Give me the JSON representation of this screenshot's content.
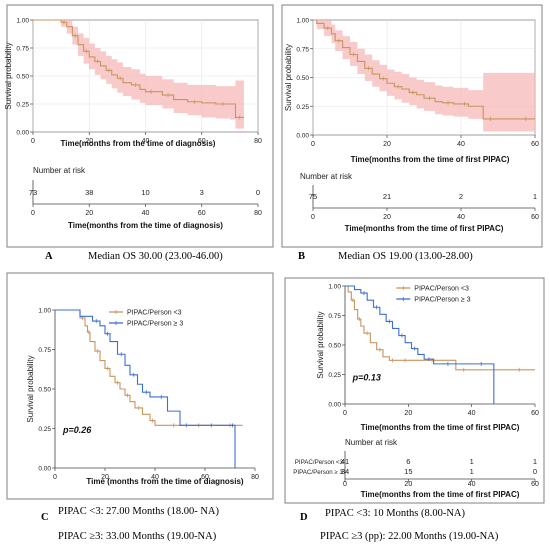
{
  "captions": {
    "a_letter": "A",
    "a_text": "Median OS 30.00 (23.00-46.00)",
    "b_letter": "B",
    "b_text": "Median OS 19.00 (13.00-28.00)",
    "c_letter": "C",
    "c_text1": "PIPAC <3: 27.00 Months (18.00- NA)",
    "c_text2": "PIPAC ≥3: 33.00 Months (19.00-NA)",
    "d_letter": "D",
    "d_text1": "PIPAC <3: 10 Months (8.00-NA)",
    "d_text2": "PIPAC ≥3 (pp): 22.00 Months (19.00-NA)"
  },
  "colors": {
    "group_lt3": "#c8955e",
    "group_ge3": "#3b6fd6",
    "overall_line": "#c8955e",
    "overall_ci": "#f6b8b8",
    "frame": "#808080"
  },
  "chart_data": [
    {
      "id": "A",
      "type": "line",
      "ylabel": "Survival probability",
      "xlabel": "Time(months from the time of diagnosis)",
      "xlim": [
        0,
        80
      ],
      "ylim": [
        0,
        1
      ],
      "xticks": [
        "0",
        "20",
        "40",
        "60",
        "80"
      ],
      "yticks": [
        "0.00",
        "0.25",
        "0.50",
        "0.75",
        "1.00"
      ],
      "grid": true,
      "series": [
        {
          "color": "#c8955e",
          "x": [
            0,
            5,
            10,
            12,
            14,
            16,
            18,
            20,
            22,
            24,
            26,
            28,
            30,
            32,
            35,
            38,
            40,
            44,
            46,
            50,
            55,
            60,
            65,
            70,
            72,
            75
          ],
          "y": [
            1.0,
            1.0,
            0.98,
            0.94,
            0.86,
            0.78,
            0.72,
            0.67,
            0.63,
            0.59,
            0.55,
            0.51,
            0.48,
            0.44,
            0.42,
            0.38,
            0.36,
            0.36,
            0.33,
            0.29,
            0.27,
            0.26,
            0.25,
            0.25,
            0.13,
            0.13
          ],
          "lower": [
            1.0,
            1.0,
            0.94,
            0.88,
            0.78,
            0.68,
            0.61,
            0.56,
            0.51,
            0.47,
            0.43,
            0.39,
            0.35,
            0.32,
            0.29,
            0.26,
            0.24,
            0.24,
            0.21,
            0.17,
            0.15,
            0.13,
            0.12,
            0.11,
            0.03,
            0.03
          ],
          "upper": [
            1.0,
            1.0,
            1.0,
            1.0,
            0.94,
            0.88,
            0.84,
            0.79,
            0.75,
            0.72,
            0.68,
            0.65,
            0.62,
            0.58,
            0.56,
            0.52,
            0.5,
            0.5,
            0.47,
            0.44,
            0.42,
            0.42,
            0.41,
            0.41,
            0.46,
            0.46
          ]
        }
      ],
      "risk_table": {
        "title": "Number at risk",
        "x": [
          0,
          20,
          40,
          60,
          80
        ],
        "rows": [
          {
            "label": "",
            "values": [
              "73",
              "38",
              "10",
              "3",
              "0"
            ]
          }
        ],
        "xlabel": "Time(months from the time of diagnosis)",
        "xticks": [
          "0",
          "20",
          "40",
          "60",
          "80"
        ]
      }
    },
    {
      "id": "B",
      "type": "line",
      "ylabel": "Survival probability",
      "xlabel": "Time(months from the time of first PIPAC)",
      "xlim": [
        0,
        60
      ],
      "ylim": [
        0,
        1
      ],
      "xticks": [
        "0",
        "20",
        "40",
        "60"
      ],
      "yticks": [
        "0.00",
        "0.25",
        "0.50",
        "0.75",
        "1.00"
      ],
      "grid": true,
      "series": [
        {
          "color": "#c8955e",
          "x": [
            0,
            1,
            3,
            5,
            6,
            8,
            10,
            12,
            14,
            16,
            18,
            20,
            22,
            24,
            26,
            28,
            30,
            33,
            35,
            38,
            40,
            42,
            46,
            50,
            55,
            60
          ],
          "y": [
            1.0,
            0.97,
            0.93,
            0.88,
            0.82,
            0.76,
            0.7,
            0.64,
            0.58,
            0.53,
            0.49,
            0.45,
            0.42,
            0.4,
            0.37,
            0.35,
            0.32,
            0.29,
            0.28,
            0.27,
            0.27,
            0.25,
            0.14,
            0.14,
            0.14,
            0.14
          ],
          "lower": [
            1.0,
            0.92,
            0.86,
            0.8,
            0.73,
            0.66,
            0.6,
            0.53,
            0.47,
            0.42,
            0.38,
            0.34,
            0.31,
            0.28,
            0.26,
            0.23,
            0.21,
            0.18,
            0.17,
            0.16,
            0.16,
            0.14,
            0.03,
            0.03,
            0.03,
            0.03
          ],
          "upper": [
            1.0,
            1.0,
            1.0,
            0.96,
            0.91,
            0.86,
            0.81,
            0.75,
            0.7,
            0.65,
            0.61,
            0.57,
            0.55,
            0.53,
            0.5,
            0.48,
            0.46,
            0.43,
            0.42,
            0.41,
            0.41,
            0.39,
            0.54,
            0.54,
            0.54,
            0.54
          ]
        }
      ],
      "risk_table": {
        "title": "Number at risk",
        "x": [
          0,
          20,
          40,
          60
        ],
        "rows": [
          {
            "label": "",
            "values": [
              "75",
              "21",
              "2",
              "1"
            ]
          }
        ],
        "xlabel": "Time(months from the time of first PIPAC)",
        "xticks": [
          "0",
          "20",
          "40",
          "60"
        ]
      }
    },
    {
      "id": "C",
      "type": "line",
      "ylabel": "Survival probability",
      "xlabel": "Time (months from the time of diagnosis)",
      "xlim": [
        0,
        80
      ],
      "ylim": [
        0,
        1
      ],
      "xticks": [
        "0",
        "20",
        "40",
        "60",
        "80"
      ],
      "yticks": [
        "0.00",
        "0.25",
        "0.50",
        "0.75",
        "1.00"
      ],
      "grid": false,
      "legend": [
        "PIPAC/Person <3",
        "PIPAC/Person ≥ 3"
      ],
      "annotation": "p=0.26",
      "series": [
        {
          "name": "PIPAC/Person <3",
          "color": "#c8955e",
          "x": [
            0,
            8,
            10,
            12,
            13,
            14,
            16,
            18,
            20,
            22,
            24,
            26,
            28,
            30,
            32,
            35,
            38,
            40,
            45,
            50,
            55,
            60,
            65,
            75
          ],
          "y": [
            1.0,
            1.0,
            0.95,
            0.9,
            0.86,
            0.8,
            0.74,
            0.68,
            0.63,
            0.58,
            0.54,
            0.5,
            0.46,
            0.42,
            0.38,
            0.34,
            0.3,
            0.27,
            0.27,
            0.27,
            0.27,
            0.27,
            0.27,
            0.27
          ]
        },
        {
          "name": "PIPAC/Person ≥ 3",
          "color": "#3b6fd6",
          "x": [
            0,
            10,
            15,
            18,
            20,
            22,
            25,
            28,
            30,
            33,
            35,
            38,
            40,
            45,
            50,
            55,
            60,
            65,
            70,
            72
          ],
          "y": [
            1.0,
            0.96,
            0.93,
            0.9,
            0.85,
            0.8,
            0.72,
            0.65,
            0.59,
            0.53,
            0.48,
            0.45,
            0.45,
            0.36,
            0.27,
            0.27,
            0.27,
            0.27,
            0.27,
            0.0
          ]
        }
      ]
    },
    {
      "id": "D",
      "type": "line",
      "ylabel": "Survival probability",
      "xlabel": "Time(months from the time of first PIPAC)",
      "xlim": [
        0,
        60
      ],
      "ylim": [
        0,
        1
      ],
      "xticks": [
        "0",
        "20",
        "40",
        "60"
      ],
      "yticks": [
        "0.00",
        "0.25",
        "0.50",
        "0.75",
        "1.00"
      ],
      "grid": false,
      "legend": [
        "PIPAC/Person <3",
        "PIPAC/Person ≥ 3"
      ],
      "annotation": "p=0.13",
      "series": [
        {
          "name": "PIPAC/Person <3",
          "color": "#c8955e",
          "x": [
            0,
            1,
            2,
            3,
            4,
            5,
            6,
            8,
            10,
            12,
            14,
            16,
            18,
            20,
            25,
            30,
            35,
            40,
            50,
            60
          ],
          "y": [
            1.0,
            0.95,
            0.88,
            0.8,
            0.72,
            0.66,
            0.6,
            0.52,
            0.46,
            0.4,
            0.37,
            0.37,
            0.37,
            0.37,
            0.37,
            0.37,
            0.29,
            0.29,
            0.29,
            0.29
          ]
        },
        {
          "name": "PIPAC/Person ≥ 3",
          "color": "#3b6fd6",
          "x": [
            0,
            3,
            5,
            7,
            9,
            11,
            13,
            15,
            17,
            19,
            21,
            23,
            25,
            28,
            30,
            35,
            40,
            46,
            47
          ],
          "y": [
            1.0,
            0.97,
            0.94,
            0.88,
            0.82,
            0.76,
            0.7,
            0.64,
            0.58,
            0.52,
            0.47,
            0.42,
            0.38,
            0.34,
            0.34,
            0.34,
            0.34,
            0.34,
            0.0
          ]
        }
      ],
      "risk_table": {
        "title": "Number at risk",
        "x": [
          0,
          20,
          40,
          60
        ],
        "rows": [
          {
            "label": "PIPAC/Person <3",
            "values": [
              "41",
              "6",
              "1",
              "1"
            ]
          },
          {
            "label": "PIPAC/Person ≥ 3",
            "values": [
              "34",
              "15",
              "1",
              "0"
            ]
          }
        ],
        "xlabel": "Time(months from the time of first PIPAC)",
        "xticks": [
          "0",
          "20",
          "40",
          "60"
        ]
      }
    }
  ]
}
